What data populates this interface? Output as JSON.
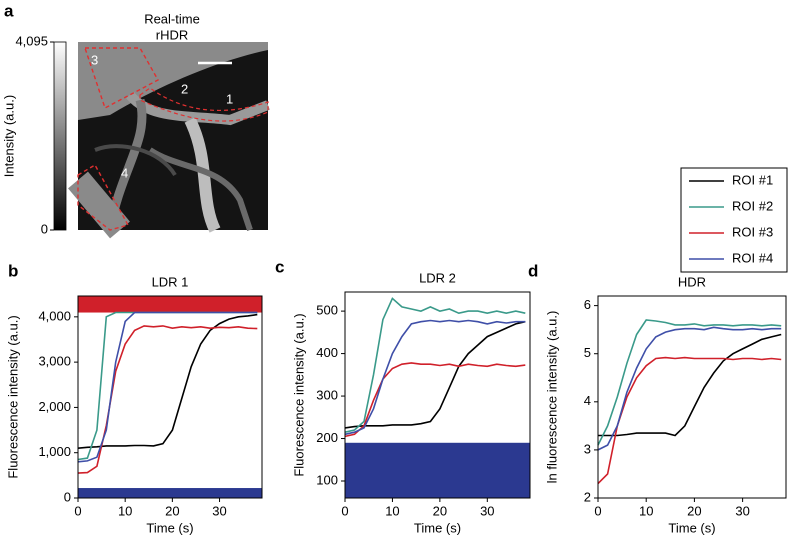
{
  "image_panel": {
    "letter": "a",
    "title": [
      "Real-time",
      "rHDR"
    ],
    "colorbar": {
      "label": "Intensity (a.u.)",
      "ticks": [
        0,
        {
          "value": 4095,
          "label": "4,095"
        }
      ],
      "lim": [
        0,
        4095
      ]
    },
    "roi_labels": [
      "1",
      "2",
      "3",
      "4"
    ]
  },
  "chart_data": [
    {
      "type": "line",
      "letter": "b",
      "title": "LDR 1",
      "xlabel": "Time (s)",
      "ylabel": "Fluorescence intensity (a.u.)",
      "x": [
        0,
        2,
        4,
        6,
        8,
        10,
        12,
        14,
        16,
        18,
        20,
        22,
        24,
        26,
        28,
        30,
        32,
        34,
        36,
        38
      ],
      "xlim": [
        0,
        39
      ],
      "xticks": [
        0,
        10,
        20,
        30
      ],
      "ylim": [
        0,
        4460
      ],
      "yticks": [
        0,
        {
          "value": 1000,
          "label": "1,000"
        },
        {
          "value": 2000,
          "label": "2,000"
        },
        {
          "value": 3000,
          "label": "3,000"
        },
        {
          "value": 4000,
          "label": "4,000"
        }
      ],
      "bands": [
        {
          "range": [
            4095,
            4460
          ],
          "color": "#d0202a"
        },
        {
          "range": [
            0,
            220
          ],
          "color": "#2b3990"
        }
      ],
      "series": [
        {
          "name": "ROI #1",
          "color": "#000000",
          "values": [
            1100,
            1120,
            1130,
            1150,
            1150,
            1150,
            1160,
            1160,
            1150,
            1200,
            1500,
            2200,
            2900,
            3400,
            3700,
            3850,
            3950,
            4000,
            4020,
            4050
          ]
        },
        {
          "name": "ROI #2",
          "color": "#3a9a8a",
          "values": [
            850,
            880,
            1500,
            4000,
            4095,
            4095,
            4095,
            4095,
            4095,
            4095,
            4095,
            4095,
            4095,
            4095,
            4095,
            4095,
            4095,
            4095,
            4095,
            4095
          ]
        },
        {
          "name": "ROI #3",
          "color": "#d0202a",
          "values": [
            550,
            560,
            700,
            1600,
            2800,
            3400,
            3700,
            3800,
            3780,
            3800,
            3750,
            3780,
            3760,
            3780,
            3750,
            3770,
            3760,
            3780,
            3750,
            3740
          ]
        },
        {
          "name": "ROI #4",
          "color": "#3f4fa8",
          "values": [
            800,
            820,
            900,
            1500,
            3000,
            3900,
            4095,
            4095,
            4095,
            4095,
            4095,
            4095,
            4095,
            4095,
            4095,
            4095,
            4095,
            4095,
            4095,
            4095
          ]
        }
      ]
    },
    {
      "type": "line",
      "letter": "c",
      "title": "LDR 2",
      "xlabel": "Time (s)",
      "ylabel": "Fluorescence intensity (a.u.)",
      "x": [
        0,
        2,
        4,
        6,
        8,
        10,
        12,
        14,
        16,
        18,
        20,
        22,
        24,
        26,
        28,
        30,
        32,
        34,
        36,
        38
      ],
      "xlim": [
        0,
        39
      ],
      "xticks": [
        0,
        10,
        20,
        30
      ],
      "ylim": [
        60,
        545
      ],
      "yticks": [
        100,
        200,
        300,
        400,
        500
      ],
      "bands": [
        {
          "range": [
            60,
            190
          ],
          "color": "#2b3990"
        }
      ],
      "series": [
        {
          "name": "ROI #1",
          "color": "#000000",
          "values": [
            225,
            228,
            230,
            230,
            230,
            232,
            232,
            232,
            235,
            240,
            270,
            320,
            370,
            400,
            420,
            440,
            450,
            460,
            470,
            475
          ]
        },
        {
          "name": "ROI #2",
          "color": "#3a9a8a",
          "values": [
            215,
            220,
            240,
            350,
            480,
            530,
            510,
            505,
            500,
            510,
            500,
            505,
            495,
            500,
            500,
            495,
            500,
            495,
            500,
            495
          ]
        },
        {
          "name": "ROI #3",
          "color": "#d0202a",
          "values": [
            205,
            210,
            230,
            290,
            340,
            365,
            375,
            378,
            375,
            375,
            372,
            375,
            370,
            375,
            372,
            370,
            375,
            372,
            370,
            373
          ]
        },
        {
          "name": "ROI #4",
          "color": "#3f4fa8",
          "values": [
            210,
            215,
            225,
            270,
            340,
            400,
            440,
            470,
            475,
            478,
            475,
            478,
            475,
            478,
            475,
            470,
            475,
            472,
            475,
            475
          ]
        }
      ]
    },
    {
      "type": "line",
      "letter": "d",
      "title": "HDR",
      "xlabel": "Time (s)",
      "ylabel": "ln fluorescence intensity (a.u.)",
      "x": [
        0,
        2,
        4,
        6,
        8,
        10,
        12,
        14,
        16,
        18,
        20,
        22,
        24,
        26,
        28,
        30,
        32,
        34,
        36,
        38
      ],
      "xlim": [
        0,
        39
      ],
      "xticks": [
        0,
        10,
        20,
        30
      ],
      "ylim": [
        2,
        6.2
      ],
      "yticks": [
        2,
        3,
        4,
        5,
        6
      ],
      "bands": [],
      "series": [
        {
          "name": "ROI #1",
          "color": "#000000",
          "values": [
            3.3,
            3.3,
            3.3,
            3.32,
            3.35,
            3.35,
            3.35,
            3.35,
            3.3,
            3.5,
            3.9,
            4.3,
            4.6,
            4.85,
            5.0,
            5.1,
            5.2,
            5.3,
            5.35,
            5.4
          ]
        },
        {
          "name": "ROI #2",
          "color": "#3a9a8a",
          "values": [
            3.1,
            3.5,
            4.1,
            4.8,
            5.4,
            5.7,
            5.68,
            5.65,
            5.6,
            5.6,
            5.62,
            5.58,
            5.6,
            5.6,
            5.58,
            5.6,
            5.6,
            5.58,
            5.6,
            5.58
          ]
        },
        {
          "name": "ROI #3",
          "color": "#d0202a",
          "values": [
            2.3,
            2.5,
            3.5,
            4.1,
            4.5,
            4.75,
            4.9,
            4.92,
            4.9,
            4.92,
            4.9,
            4.9,
            4.9,
            4.9,
            4.88,
            4.9,
            4.9,
            4.88,
            4.9,
            4.88
          ]
        },
        {
          "name": "ROI #4",
          "color": "#3f4fa8",
          "values": [
            3.0,
            3.1,
            3.5,
            4.2,
            4.7,
            5.1,
            5.35,
            5.45,
            5.5,
            5.52,
            5.52,
            5.5,
            5.55,
            5.52,
            5.5,
            5.5,
            5.52,
            5.5,
            5.52,
            5.52
          ]
        }
      ]
    }
  ]
}
